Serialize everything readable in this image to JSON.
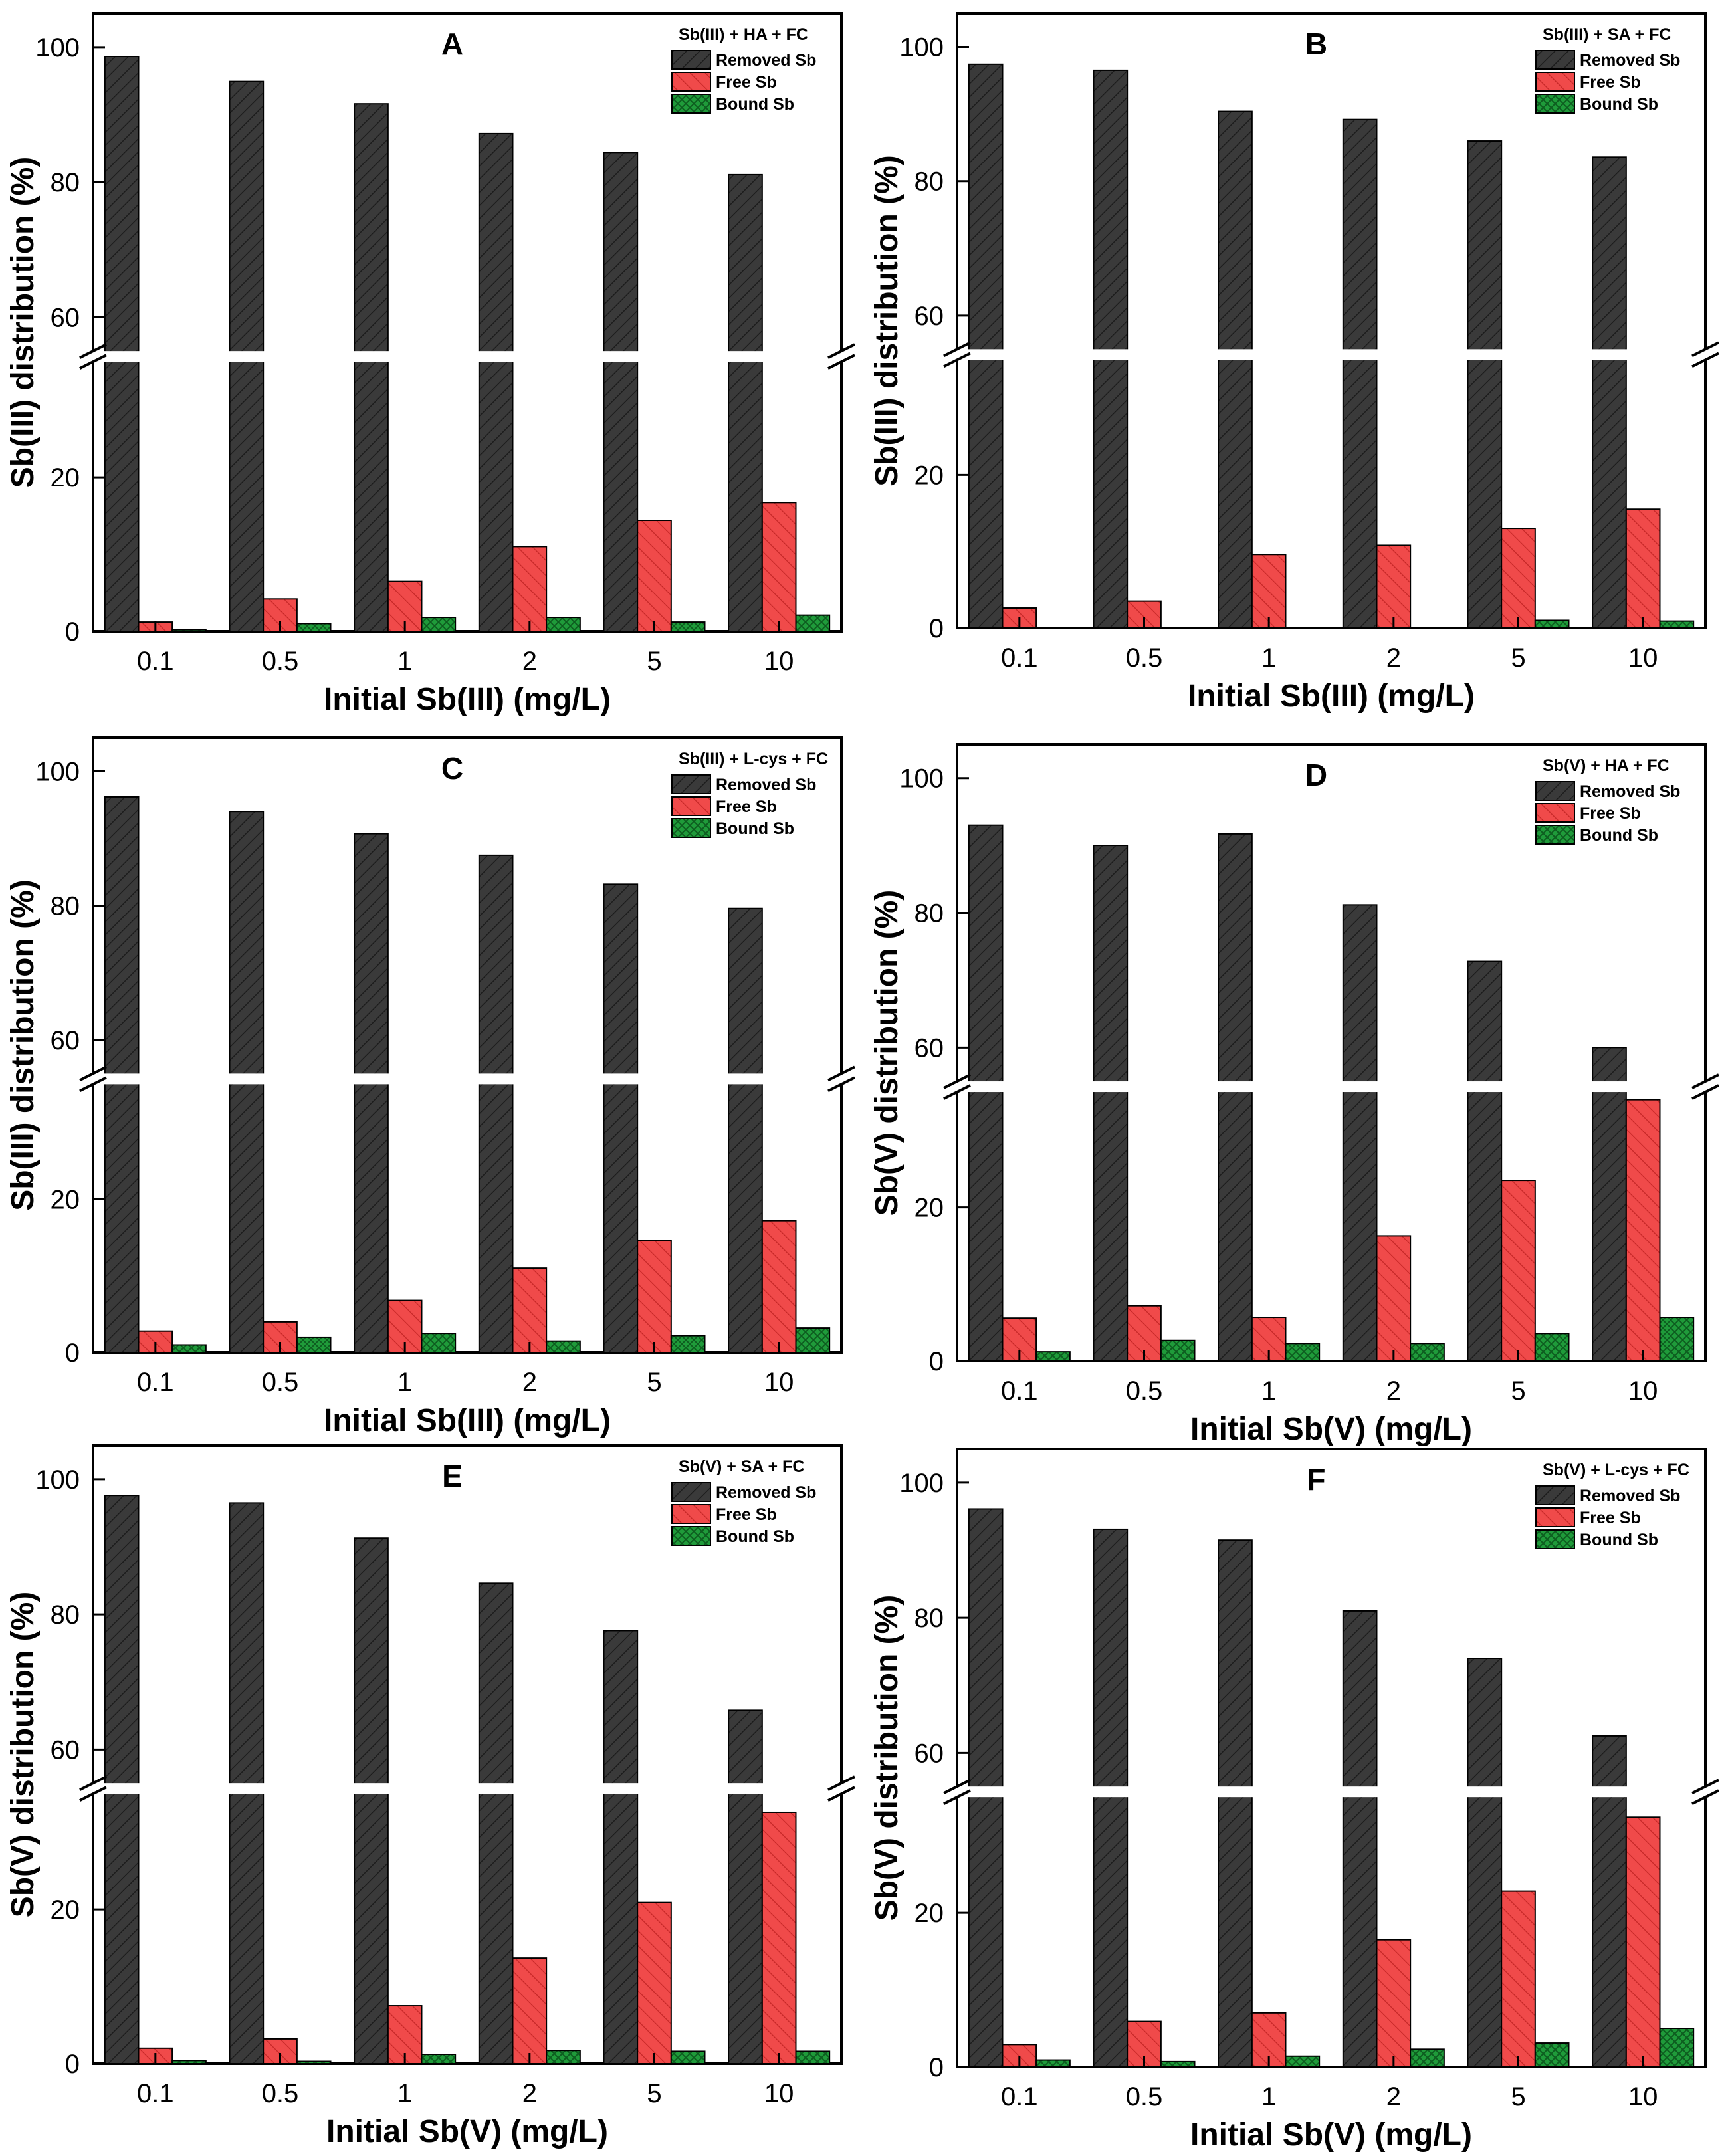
{
  "colors": {
    "removed": "#3a3a3a",
    "free": "#f04a4a",
    "bound": "#1f9b3a",
    "axis": "#000000"
  },
  "legend_items": [
    "Removed Sb",
    "Free Sb",
    "Bound Sb"
  ],
  "chart_data": [
    {
      "type": "bar",
      "panel": "A",
      "legend_title": "Sb(III) + HA + FC",
      "categories": [
        "0.1",
        "0.5",
        "1",
        "2",
        "5",
        "10"
      ],
      "xlabel": "Initial Sb(III) (mg/L)",
      "ylabel": "Sb(III) distribution (%)",
      "axis_break": [
        35,
        55
      ],
      "ylim": [
        0,
        105
      ],
      "yticks": [
        0,
        20,
        60,
        80,
        100
      ],
      "series": [
        {
          "name": "Removed Sb",
          "values": [
            98.6,
            94.9,
            91.6,
            87.2,
            84.4,
            81.1
          ]
        },
        {
          "name": "Free Sb",
          "values": [
            1.2,
            4.2,
            6.5,
            11.0,
            14.4,
            16.7
          ]
        },
        {
          "name": "Bound Sb",
          "values": [
            0.2,
            1.0,
            1.8,
            1.8,
            1.2,
            2.1
          ]
        }
      ]
    },
    {
      "type": "bar",
      "panel": "B",
      "legend_title": "Sb(III) + SA + FC",
      "categories": [
        "0.1",
        "0.5",
        "1",
        "2",
        "5",
        "10"
      ],
      "xlabel": "Initial Sb(III) (mg/L)",
      "ylabel": "Sb(III) distribution (%)",
      "axis_break": [
        35,
        55
      ],
      "ylim": [
        0,
        105
      ],
      "yticks": [
        0,
        20,
        60,
        80,
        100
      ],
      "series": [
        {
          "name": "Removed Sb",
          "values": [
            97.4,
            96.5,
            90.4,
            89.2,
            86.0,
            83.6
          ]
        },
        {
          "name": "Free Sb",
          "values": [
            2.6,
            3.5,
            9.6,
            10.8,
            13.0,
            15.5
          ]
        },
        {
          "name": "Bound Sb",
          "values": [
            0.0,
            0.0,
            0.0,
            0.0,
            1.0,
            0.9
          ]
        }
      ]
    },
    {
      "type": "bar",
      "panel": "C",
      "legend_title": "Sb(III) + L-cys + FC",
      "categories": [
        "0.1",
        "0.5",
        "1",
        "2",
        "5",
        "10"
      ],
      "xlabel": "Initial Sb(III) (mg/L)",
      "ylabel": "Sb(III) distribution (%)",
      "axis_break": [
        35,
        55
      ],
      "ylim": [
        0,
        105
      ],
      "yticks": [
        0,
        20,
        60,
        80,
        100
      ],
      "series": [
        {
          "name": "Removed Sb",
          "values": [
            96.2,
            94.0,
            90.7,
            87.5,
            83.2,
            79.6
          ]
        },
        {
          "name": "Free Sb",
          "values": [
            2.8,
            4.0,
            6.8,
            11.0,
            14.6,
            17.2
          ]
        },
        {
          "name": "Bound Sb",
          "values": [
            1.0,
            2.0,
            2.5,
            1.5,
            2.2,
            3.2
          ]
        }
      ]
    },
    {
      "type": "bar",
      "panel": "D",
      "legend_title": "Sb(V) + HA + FC",
      "categories": [
        "0.1",
        "0.5",
        "1",
        "2",
        "5",
        "10"
      ],
      "xlabel": "Initial Sb(V) (mg/L)",
      "ylabel": "Sb(V) distribution (%)",
      "axis_break": [
        35,
        55
      ],
      "ylim": [
        0,
        105
      ],
      "yticks": [
        0,
        20,
        60,
        80,
        100
      ],
      "series": [
        {
          "name": "Removed Sb",
          "values": [
            93.0,
            90.0,
            91.7,
            81.2,
            72.8,
            60.0
          ]
        },
        {
          "name": "Free Sb",
          "values": [
            5.6,
            7.2,
            5.7,
            16.3,
            23.5,
            34.0
          ]
        },
        {
          "name": "Bound Sb",
          "values": [
            1.2,
            2.7,
            2.3,
            2.3,
            3.6,
            5.7
          ]
        }
      ]
    },
    {
      "type": "bar",
      "panel": "E",
      "legend_title": "Sb(V) + SA + FC",
      "categories": [
        "0.1",
        "0.5",
        "1",
        "2",
        "5",
        "10"
      ],
      "xlabel": "Initial Sb(V) (mg/L)",
      "ylabel": "Sb(V) distribution (%)",
      "axis_break": [
        35,
        55
      ],
      "ylim": [
        0,
        105
      ],
      "yticks": [
        0,
        20,
        60,
        80,
        100
      ],
      "series": [
        {
          "name": "Removed Sb",
          "values": [
            97.6,
            96.5,
            91.3,
            84.6,
            77.6,
            65.8
          ]
        },
        {
          "name": "Free Sb",
          "values": [
            2.0,
            3.2,
            7.5,
            13.7,
            20.9,
            32.6
          ]
        },
        {
          "name": "Bound Sb",
          "values": [
            0.4,
            0.3,
            1.2,
            1.7,
            1.6,
            1.6
          ]
        }
      ]
    },
    {
      "type": "bar",
      "panel": "F",
      "legend_title": "Sb(V) + L-cys + FC",
      "categories": [
        "0.1",
        "0.5",
        "1",
        "2",
        "5",
        "10"
      ],
      "xlabel": "Initial Sb(V) (mg/L)",
      "ylabel": "Sb(V) distribution (%)",
      "axis_break": [
        35,
        55
      ],
      "ylim": [
        0,
        105
      ],
      "yticks": [
        0,
        20,
        60,
        80,
        100
      ],
      "series": [
        {
          "name": "Removed Sb",
          "values": [
            96.1,
            93.1,
            91.5,
            81.0,
            74.0,
            62.5
          ]
        },
        {
          "name": "Free Sb",
          "values": [
            2.9,
            5.9,
            7.0,
            16.5,
            22.8,
            32.4
          ]
        },
        {
          "name": "Bound Sb",
          "values": [
            0.9,
            0.7,
            1.4,
            2.3,
            3.1,
            5.0
          ]
        }
      ]
    }
  ]
}
